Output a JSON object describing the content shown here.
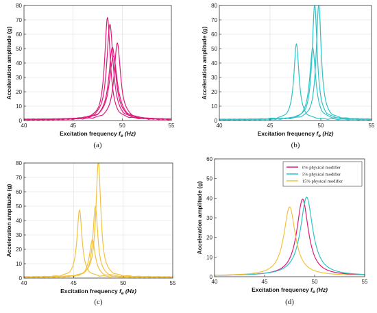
{
  "chart_data": [
    {
      "type": "line",
      "caption": "(a)",
      "xlabel": "Excitation frequency",
      "xlabel_symbol": "f",
      "xlabel_sub": "e",
      "xlabel_unit": "(Hz)",
      "ylabel": "Acceleration amplitude (g)",
      "xlim": [
        40,
        55
      ],
      "ylim": [
        0,
        80
      ],
      "xticks": [
        40,
        45,
        50,
        55
      ],
      "yticks": [
        0,
        10,
        20,
        30,
        40,
        50,
        60,
        70,
        80
      ],
      "grid": true,
      "color": "#e0187a",
      "peaks": [
        {
          "f0": 48.5,
          "amp": 71,
          "width": 0.35
        },
        {
          "f0": 48.75,
          "amp": 66,
          "width": 0.4
        },
        {
          "f0": 49.0,
          "amp": 50,
          "width": 0.45
        },
        {
          "f0": 49.5,
          "amp": 53,
          "width": 0.4
        },
        {
          "f0": 49.1,
          "amp": 44,
          "width": 0.5
        }
      ]
    },
    {
      "type": "line",
      "caption": "(b)",
      "xlabel": "Excitation frequency",
      "xlabel_symbol": "f",
      "xlabel_sub": "e",
      "xlabel_unit": "(Hz)",
      "ylabel": "Acceleration amplitude (g)",
      "xlim": [
        40,
        55
      ],
      "ylim": [
        0,
        80
      ],
      "xticks": [
        40,
        45,
        50,
        55
      ],
      "yticks": [
        0,
        10,
        20,
        30,
        40,
        50,
        60,
        70,
        80
      ],
      "grid": true,
      "color": "#2fc2c8",
      "peaks": [
        {
          "f0": 47.6,
          "amp": 53,
          "width": 0.3
        },
        {
          "f0": 49.2,
          "amp": 50,
          "width": 0.35
        },
        {
          "f0": 49.4,
          "amp": 80,
          "width": 0.3
        },
        {
          "f0": 49.8,
          "amp": 80,
          "width": 0.3
        }
      ]
    },
    {
      "type": "line",
      "caption": "(c)",
      "xlabel": "Excitation frequency",
      "xlabel_symbol": "f",
      "xlabel_sub": "e",
      "xlabel_unit": "(Hz)",
      "ylabel": "Acceleration amplitude (g)",
      "xlim": [
        40,
        55
      ],
      "ylim": [
        0,
        80
      ],
      "xticks": [
        40,
        45,
        50,
        55
      ],
      "yticks": [
        0,
        10,
        20,
        30,
        40,
        50,
        60,
        70,
        80
      ],
      "grid": true,
      "color": "#f2c23c",
      "peaks": [
        {
          "f0": 45.6,
          "amp": 47,
          "width": 0.3
        },
        {
          "f0": 46.9,
          "amp": 26,
          "width": 0.35
        },
        {
          "f0": 47.2,
          "amp": 49,
          "width": 0.3
        },
        {
          "f0": 47.5,
          "amp": 80,
          "width": 0.3
        }
      ]
    },
    {
      "type": "line",
      "caption": "(d)",
      "xlabel": "Excitation frequency",
      "xlabel_symbol": "f",
      "xlabel_sub": "e",
      "xlabel_unit": "(Hz)",
      "ylabel": "Acceleration amplitude (g)",
      "xlim": [
        40,
        55
      ],
      "ylim": [
        0,
        60
      ],
      "xticks": [
        40,
        45,
        50,
        55
      ],
      "yticks": [
        0,
        10,
        20,
        30,
        40,
        50,
        60
      ],
      "grid": false,
      "legend": "top-right",
      "series": [
        {
          "name": "0% physical modifier",
          "color": "#e0187a",
          "f0": 48.8,
          "amp": 39,
          "width": 0.7
        },
        {
          "name": "5% physical modifier",
          "color": "#2fc2c8",
          "f0": 49.2,
          "amp": 40,
          "width": 0.75
        },
        {
          "name": "15% physical modifier",
          "color": "#f2c23c",
          "f0": 47.5,
          "amp": 35,
          "width": 0.7
        }
      ]
    }
  ]
}
